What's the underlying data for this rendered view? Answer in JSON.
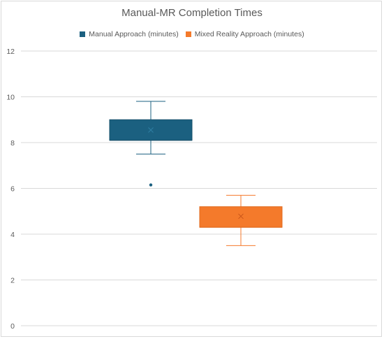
{
  "chart_data": {
    "type": "box",
    "title": "Manual-MR Completion Times",
    "xlabel": "",
    "ylabel": "",
    "ylim": [
      0,
      12
    ],
    "yticks": [
      0,
      2,
      4,
      6,
      8,
      10,
      12
    ],
    "grid": true,
    "legend_position": "top",
    "series": [
      {
        "name": "Manual Approach (minutes)",
        "color": "#1b6080",
        "min": 7.5,
        "q1": 8.1,
        "median": 8.1,
        "q3": 9.0,
        "max": 9.8,
        "mean": 8.55,
        "outliers": [
          6.15
        ]
      },
      {
        "name": "Mixed Reality Approach (minutes)",
        "color": "#f47a2b",
        "min": 3.5,
        "q1": 4.3,
        "median": 4.3,
        "q3": 5.2,
        "max": 5.7,
        "mean": 4.78,
        "outliers": []
      }
    ]
  }
}
